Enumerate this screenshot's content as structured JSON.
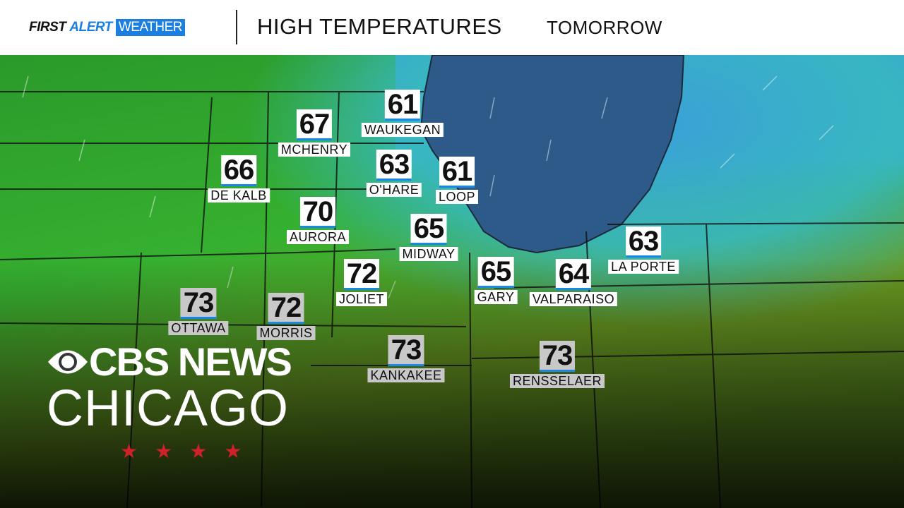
{
  "header": {
    "brand_first": "FIRST",
    "brand_alert": "ALERT",
    "brand_weather": "WEATHER",
    "title": "HIGH TEMPERATURES",
    "subtitle": "TOMORROW"
  },
  "colors": {
    "accent": "#1a86e8",
    "land_green": "#2ea82a",
    "lake": "#2e5a8a",
    "warm": "#8a9a20",
    "star_red": "#d0202a"
  },
  "locations": [
    {
      "name": "WAUKEGAN",
      "temp": "61"
    },
    {
      "name": "MCHENRY",
      "temp": "67"
    },
    {
      "name": "DE KALB",
      "temp": "66"
    },
    {
      "name": "O'HARE",
      "temp": "63"
    },
    {
      "name": "LOOP",
      "temp": "61"
    },
    {
      "name": "AURORA",
      "temp": "70"
    },
    {
      "name": "MIDWAY",
      "temp": "65"
    },
    {
      "name": "LA PORTE",
      "temp": "63"
    },
    {
      "name": "JOLIET",
      "temp": "72"
    },
    {
      "name": "GARY",
      "temp": "65"
    },
    {
      "name": "VALPARAISO",
      "temp": "64"
    },
    {
      "name": "OTTAWA",
      "temp": "73"
    },
    {
      "name": "MORRIS",
      "temp": "72"
    },
    {
      "name": "KANKAKEE",
      "temp": "73"
    },
    {
      "name": "RENSSELAER",
      "temp": "73"
    }
  ],
  "logo": {
    "line1": "CBS NEWS",
    "line2": "CHICAGO",
    "stars": [
      "★",
      "★",
      "★",
      "★"
    ]
  }
}
